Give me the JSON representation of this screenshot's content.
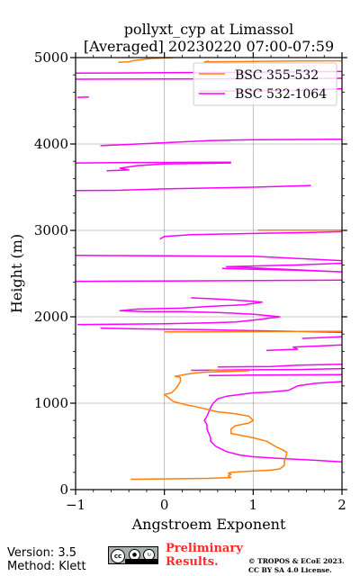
{
  "chart_data": {
    "type": "line",
    "title": "pollyxt_cyp at Limassol",
    "subtitle": "[Averaged] 20230220 07:00-07:59",
    "xlabel": "Angstroem Exponent",
    "ylabel": "Height (m)",
    "xlim": [
      -1,
      2
    ],
    "ylim": [
      0,
      5000
    ],
    "xticks": [
      -1,
      0,
      1,
      2
    ],
    "yticks": [
      0,
      1000,
      2000,
      3000,
      4000,
      5000
    ],
    "xtick_labels": [
      "−1",
      "0",
      "1",
      "2"
    ],
    "ytick_labels": [
      "0",
      "1000",
      "2000",
      "3000",
      "4000",
      "5000"
    ],
    "grid": true,
    "legend_position": "top-right",
    "series": [
      {
        "name": "BSC 355-532",
        "color": "#ff7f0e",
        "segments": [
          [
            [
              -0.38,
              120
            ],
            [
              0.1,
              125
            ],
            [
              0.5,
              130
            ],
            [
              0.75,
              140
            ],
            [
              0.72,
              160
            ],
            [
              0.75,
              175
            ],
            [
              0.72,
              190
            ],
            [
              0.75,
              200
            ],
            [
              1.0,
              215
            ],
            [
              1.2,
              225
            ],
            [
              1.3,
              240
            ],
            [
              1.35,
              280
            ],
            [
              1.35,
              330
            ],
            [
              1.37,
              380
            ],
            [
              1.38,
              430
            ],
            [
              1.33,
              460
            ],
            [
              1.25,
              500
            ],
            [
              1.15,
              560
            ],
            [
              1.0,
              600
            ],
            [
              0.85,
              630
            ],
            [
              0.75,
              650
            ],
            [
              0.75,
              700
            ],
            [
              0.8,
              740
            ],
            [
              0.95,
              770
            ],
            [
              1.0,
              800
            ],
            [
              0.95,
              850
            ],
            [
              0.78,
              880
            ],
            [
              0.6,
              900
            ],
            [
              0.4,
              950
            ],
            [
              0.25,
              980
            ],
            [
              0.1,
              1020
            ],
            [
              0.05,
              1060
            ],
            [
              0.0,
              1100
            ],
            [
              0.08,
              1120
            ],
            [
              0.12,
              1160
            ],
            [
              0.15,
              1200
            ],
            [
              0.18,
              1250
            ],
            [
              0.18,
              1300
            ],
            [
              0.12,
              1310
            ],
            [
              0.22,
              1330
            ],
            [
              0.35,
              1350
            ],
            [
              0.5,
              1360
            ],
            [
              0.8,
              1370
            ],
            [
              0.95,
              1375
            ],
            [
              0.6,
              1380
            ],
            [
              0.5,
              1385
            ]
          ],
          [
            [
              0.0,
              1825
            ],
            [
              0.5,
              1826
            ],
            [
              1.0,
              1828
            ],
            [
              1.5,
              1830
            ],
            [
              2.0,
              1832
            ]
          ],
          [
            [
              1.05,
              3002
            ],
            [
              1.5,
              3002
            ],
            [
              2.0,
              3002
            ]
          ],
          [
            [
              0.5,
              4960
            ],
            [
              0.45,
              4950
            ],
            [
              1.0,
              4955
            ],
            [
              1.5,
              4960
            ],
            [
              2.0,
              4962
            ]
          ],
          [
            [
              -0.52,
              4945
            ],
            [
              -0.4,
              4950
            ],
            [
              -0.35,
              4965
            ],
            [
              -0.15,
              4990
            ],
            [
              0.1,
              5000
            ]
          ]
        ]
      },
      {
        "name": "BSC 532-1064",
        "color": "#ff00ff",
        "segments": [
          [
            [
              2.0,
              320
            ],
            [
              1.7,
              340
            ],
            [
              1.3,
              360
            ],
            [
              1.0,
              380
            ],
            [
              0.85,
              400
            ],
            [
              0.7,
              440
            ],
            [
              0.58,
              500
            ],
            [
              0.52,
              560
            ],
            [
              0.52,
              600
            ],
            [
              0.5,
              650
            ],
            [
              0.48,
              700
            ],
            [
              0.48,
              750
            ],
            [
              0.45,
              800
            ],
            [
              0.48,
              850
            ],
            [
              0.5,
              900
            ],
            [
              0.52,
              950
            ],
            [
              0.55,
              1000
            ],
            [
              0.6,
              1050
            ],
            [
              0.7,
              1080
            ],
            [
              0.85,
              1100
            ],
            [
              1.0,
              1120
            ],
            [
              1.2,
              1130
            ],
            [
              1.4,
              1150
            ],
            [
              1.5,
              1200
            ],
            [
              1.7,
              1230
            ],
            [
              2.0,
              1250
            ]
          ],
          [
            [
              0.5,
              1320
            ],
            [
              1.0,
              1325
            ],
            [
              1.5,
              1328
            ],
            [
              2.0,
              1330
            ]
          ],
          [
            [
              0.3,
              1380
            ],
            [
              0.8,
              1385
            ],
            [
              1.5,
              1390
            ],
            [
              2.0,
              1400
            ]
          ],
          [
            [
              0.6,
              1420
            ],
            [
              1.2,
              1425
            ],
            [
              1.5,
              1440
            ],
            [
              2.0,
              1450
            ]
          ],
          [
            [
              1.15,
              1610
            ],
            [
              1.5,
              1625
            ],
            [
              1.45,
              1650
            ],
            [
              1.7,
              1660
            ],
            [
              2.0,
              1675
            ]
          ],
          [
            [
              1.55,
              1750
            ],
            [
              1.8,
              1760
            ],
            [
              2.0,
              1770
            ]
          ],
          [
            [
              -0.72,
              1870
            ],
            [
              -0.3,
              1860
            ],
            [
              0.5,
              1850
            ],
            [
              1.0,
              1840
            ],
            [
              1.5,
              1830
            ],
            [
              2.0,
              1820
            ]
          ],
          [
            [
              -0.98,
              1910
            ],
            [
              -0.5,
              1915
            ],
            [
              0.0,
              1920
            ],
            [
              0.5,
              1930
            ],
            [
              0.8,
              1940
            ],
            [
              1.0,
              1960
            ],
            [
              1.15,
              1980
            ],
            [
              1.3,
              2000
            ],
            [
              1.2,
              2010
            ],
            [
              1.0,
              2030
            ],
            [
              0.6,
              2050
            ],
            [
              0.2,
              2060
            ],
            [
              -0.2,
              2060
            ],
            [
              -0.5,
              2070
            ],
            [
              -0.3,
              2090
            ],
            [
              0.2,
              2100
            ],
            [
              0.5,
              2120
            ],
            [
              0.9,
              2140
            ],
            [
              1.1,
              2170
            ],
            [
              1.0,
              2180
            ],
            [
              0.7,
              2200
            ],
            [
              0.3,
              2220
            ]
          ],
          [
            [
              -1.0,
              2410
            ],
            [
              0.0,
              2415
            ],
            [
              1.0,
              2420
            ],
            [
              2.0,
              2425
            ]
          ],
          [
            [
              0.65,
              2560
            ],
            [
              1.0,
              2550
            ],
            [
              1.5,
              2540
            ],
            [
              2.0,
              2520
            ],
            [
              0.7,
              2580
            ],
            [
              1.5,
              2600
            ],
            [
              2.0,
              2620
            ]
          ],
          [
            [
              -1.0,
              2710
            ],
            [
              0.0,
              2705
            ],
            [
              1.0,
              2700
            ],
            [
              2.0,
              2650
            ]
          ],
          [
            [
              -0.05,
              2900
            ],
            [
              0.0,
              2930
            ],
            [
              0.3,
              2950
            ],
            [
              1.0,
              2965
            ],
            [
              1.6,
              2975
            ],
            [
              2.0,
              2985
            ]
          ],
          [
            [
              -1.0,
              3460
            ],
            [
              -0.5,
              3465
            ],
            [
              0.0,
              3480
            ],
            [
              1.0,
              3500
            ],
            [
              1.65,
              3520
            ]
          ],
          [
            [
              -0.65,
              3690
            ],
            [
              -0.4,
              3700
            ],
            [
              -0.5,
              3720
            ],
            [
              -0.3,
              3750
            ],
            [
              0.0,
              3770
            ],
            [
              0.75,
              3780
            ]
          ],
          [
            [
              -1.0,
              3780
            ],
            [
              -0.3,
              3785
            ],
            [
              0.75,
              3790
            ]
          ],
          [
            [
              -0.72,
              3980
            ],
            [
              -0.3,
              4000
            ],
            [
              0.5,
              4040
            ],
            [
              1.0,
              4050
            ],
            [
              2.0,
              4055
            ]
          ],
          [
            [
              -0.98,
              4540
            ],
            [
              -0.85,
              4545
            ]
          ],
          [
            [
              -1.0,
              4750
            ],
            [
              0.0,
              4752
            ],
            [
              1.0,
              4755
            ],
            [
              2.0,
              4760
            ]
          ],
          [
            [
              -1.0,
              4820
            ],
            [
              0.0,
              4825
            ],
            [
              1.0,
              4830
            ],
            [
              2.0,
              4840
            ]
          ],
          [
            [
              0.4,
              4610
            ],
            [
              1.5,
              4620
            ],
            [
              1.8,
              4630
            ],
            [
              2.0,
              4640
            ]
          ]
        ]
      }
    ]
  },
  "footer": {
    "version": "Version: 3.5",
    "method": "Method: Klett",
    "preliminary_line1": "Preliminary",
    "preliminary_line2": "Results.",
    "copyright_line1": "© TROPOS & ECoE 2023.",
    "copyright_line2": "CC BY SA 4.0 License.",
    "license_badge": {
      "cc": "cc",
      "by": "BY",
      "sa": "SA"
    }
  }
}
